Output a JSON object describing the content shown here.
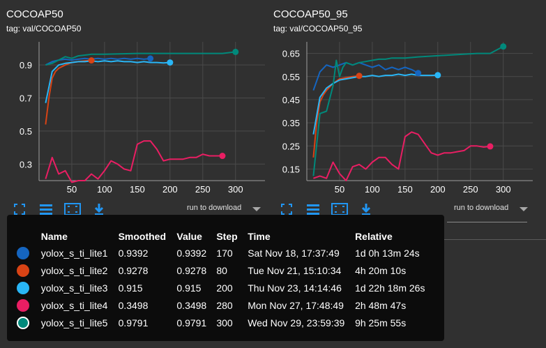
{
  "cards": [
    {
      "title": "COCOAP50",
      "tag": "tag: val/COCOAP50",
      "download_label": "run to download"
    },
    {
      "title": "COCOAP50_95",
      "tag": "tag: val/COCOAP50_95",
      "download_label": "run to download"
    }
  ],
  "toolbar_icons": [
    "fit-domain-icon",
    "toggle-ylog-icon",
    "expand-icon",
    "download-icon"
  ],
  "colors": {
    "background": "#303030",
    "grid": "#4a4a4a",
    "axis": "#9e9e9e",
    "tooltip_bg": "#0c0c0c"
  },
  "chart_data": [
    {
      "type": "line",
      "title": "COCOAP50",
      "subtitle": "tag: val/COCOAP50",
      "xlim": [
        0,
        345
      ],
      "ylim": [
        0.2,
        1.04
      ],
      "x_ticks": [
        "50",
        "100",
        "150",
        "200",
        "250",
        "300"
      ],
      "x_tick_values": [
        50,
        100,
        150,
        200,
        250,
        300
      ],
      "y_ticks": [
        "0.9",
        "0.7",
        "0.5",
        "0.3"
      ],
      "y_tick_values": [
        0.9,
        0.7,
        0.5,
        0.3
      ],
      "grid": true,
      "series": [
        {
          "name": "yolox_s_ti_lite1",
          "color": "#1565c0",
          "x": [
            10,
            20,
            30,
            40,
            50,
            60,
            70,
            80,
            90,
            100,
            110,
            120,
            130,
            140,
            150,
            160,
            170
          ],
          "y": [
            0.9,
            0.92,
            0.93,
            0.935,
            0.93,
            0.935,
            0.94,
            0.935,
            0.94,
            0.935,
            0.94,
            0.935,
            0.94,
            0.935,
            0.94,
            0.935,
            0.9392
          ]
        },
        {
          "name": "yolox_s_ti_lite2",
          "color": "#d84315",
          "x": [
            10,
            15,
            20,
            25,
            30,
            40,
            50,
            60,
            70,
            80
          ],
          "y": [
            0.54,
            0.7,
            0.82,
            0.86,
            0.88,
            0.9,
            0.915,
            0.92,
            0.925,
            0.9278
          ]
        },
        {
          "name": "yolox_s_ti_lite3",
          "color": "#29b6f6",
          "x": [
            10,
            20,
            30,
            40,
            50,
            60,
            70,
            80,
            90,
            100,
            110,
            120,
            130,
            140,
            150,
            160,
            170,
            180,
            190,
            200
          ],
          "y": [
            0.67,
            0.86,
            0.9,
            0.91,
            0.915,
            0.92,
            0.92,
            0.925,
            0.92,
            0.925,
            0.92,
            0.925,
            0.92,
            0.92,
            0.915,
            0.92,
            0.915,
            0.915,
            0.912,
            0.915
          ]
        },
        {
          "name": "yolox_s_ti_lite4",
          "color": "#e91e63",
          "x": [
            10,
            20,
            30,
            40,
            50,
            60,
            70,
            80,
            90,
            100,
            110,
            120,
            130,
            140,
            150,
            160,
            170,
            180,
            190,
            200,
            210,
            220,
            230,
            240,
            250,
            260,
            270,
            280
          ],
          "y": [
            0.21,
            0.34,
            0.24,
            0.26,
            0.19,
            0.2,
            0.2,
            0.24,
            0.21,
            0.26,
            0.32,
            0.3,
            0.27,
            0.26,
            0.42,
            0.44,
            0.44,
            0.39,
            0.32,
            0.33,
            0.33,
            0.33,
            0.34,
            0.34,
            0.36,
            0.35,
            0.35,
            0.3498
          ]
        },
        {
          "name": "yolox_s_ti_lite5",
          "color": "#00897b",
          "x": [
            10,
            20,
            30,
            40,
            50,
            60,
            70,
            80,
            100,
            150,
            200,
            250,
            280,
            300
          ],
          "y": [
            0.9,
            0.91,
            0.93,
            0.95,
            0.94,
            0.955,
            0.96,
            0.965,
            0.965,
            0.97,
            0.97,
            0.97,
            0.97,
            0.9791
          ]
        }
      ]
    },
    {
      "type": "line",
      "title": "COCOAP50_95",
      "subtitle": "tag: val/COCOAP50_95",
      "xlim": [
        0,
        345
      ],
      "ylim": [
        0.1,
        0.7
      ],
      "x_ticks": [
        "50",
        "100",
        "150",
        "200",
        "250",
        "300"
      ],
      "x_tick_values": [
        50,
        100,
        150,
        200,
        250,
        300
      ],
      "y_ticks": [
        "0.65",
        "0.55",
        "0.45",
        "0.35",
        "0.25",
        "0.15"
      ],
      "y_tick_values": [
        0.65,
        0.55,
        0.45,
        0.35,
        0.25,
        0.15
      ],
      "grid": true,
      "series": [
        {
          "name": "yolox_s_ti_lite1",
          "color": "#1565c0",
          "x": [
            10,
            20,
            30,
            40,
            50,
            60,
            70,
            80,
            90,
            100,
            110,
            120,
            130,
            140,
            150,
            160,
            170
          ],
          "y": [
            0.49,
            0.57,
            0.6,
            0.59,
            0.6,
            0.61,
            0.6,
            0.61,
            0.6,
            0.59,
            0.6,
            0.58,
            0.59,
            0.58,
            0.59,
            0.58,
            0.565
          ]
        },
        {
          "name": "yolox_s_ti_lite2",
          "color": "#d84315",
          "x": [
            10,
            15,
            20,
            25,
            30,
            40,
            50,
            60,
            70,
            80
          ],
          "y": [
            0.2,
            0.35,
            0.44,
            0.47,
            0.49,
            0.52,
            0.54,
            0.545,
            0.55,
            0.553
          ]
        },
        {
          "name": "yolox_s_ti_lite3",
          "color": "#29b6f6",
          "x": [
            10,
            20,
            30,
            40,
            50,
            60,
            70,
            80,
            90,
            100,
            110,
            120,
            130,
            140,
            150,
            160,
            170,
            180,
            190,
            200
          ],
          "y": [
            0.3,
            0.46,
            0.5,
            0.52,
            0.535,
            0.54,
            0.545,
            0.55,
            0.55,
            0.555,
            0.55,
            0.555,
            0.555,
            0.56,
            0.555,
            0.56,
            0.555,
            0.555,
            0.555,
            0.556
          ]
        },
        {
          "name": "yolox_s_ti_lite4",
          "color": "#e91e63",
          "x": [
            10,
            20,
            30,
            40,
            50,
            60,
            70,
            80,
            90,
            100,
            110,
            120,
            130,
            140,
            150,
            160,
            170,
            180,
            190,
            200,
            210,
            220,
            230,
            240,
            250,
            260,
            270,
            280
          ],
          "y": [
            0.11,
            0.12,
            0.11,
            0.18,
            0.13,
            0.1,
            0.16,
            0.17,
            0.15,
            0.18,
            0.2,
            0.2,
            0.17,
            0.15,
            0.29,
            0.31,
            0.3,
            0.26,
            0.22,
            0.21,
            0.22,
            0.22,
            0.225,
            0.23,
            0.25,
            0.25,
            0.245,
            0.248
          ]
        },
        {
          "name": "yolox_s_ti_lite5",
          "color": "#00897b",
          "x": [
            10,
            20,
            30,
            40,
            45,
            50,
            55,
            60,
            70,
            80,
            90,
            100,
            110,
            120,
            130,
            150,
            170,
            200,
            230,
            260,
            280,
            290,
            300
          ],
          "y": [
            0.12,
            0.39,
            0.4,
            0.51,
            0.62,
            0.55,
            0.59,
            0.61,
            0.6,
            0.61,
            0.615,
            0.62,
            0.625,
            0.625,
            0.63,
            0.63,
            0.635,
            0.64,
            0.645,
            0.65,
            0.65,
            0.665,
            0.68
          ]
        }
      ]
    }
  ],
  "tooltip": {
    "headers": {
      "name": "Name",
      "smoothed": "Smoothed",
      "value": "Value",
      "step": "Step",
      "time": "Time",
      "relative": "Relative"
    },
    "rows": [
      {
        "color": "#1565c0",
        "name": "yolox_s_ti_lite1",
        "smoothed": "0.9392",
        "value": "0.9392",
        "step": "170",
        "time": "Sat Nov 18, 17:37:49",
        "relative": "1d 0h 13m 24s"
      },
      {
        "color": "#d84315",
        "name": "yolox_s_ti_lite2",
        "smoothed": "0.9278",
        "value": "0.9278",
        "step": "80",
        "time": "Tue Nov 21, 15:10:34",
        "relative": "4h 20m 10s"
      },
      {
        "color": "#29b6f6",
        "name": "yolox_s_ti_lite3",
        "smoothed": "0.915",
        "value": "0.915",
        "step": "200",
        "time": "Thu Nov 23, 14:14:46",
        "relative": "1d 22h 18m 26s"
      },
      {
        "color": "#e91e63",
        "name": "yolox_s_ti_lite4",
        "smoothed": "0.3498",
        "value": "0.3498",
        "step": "280",
        "time": "Mon Nov 27, 17:48:49",
        "relative": "2h 48m 47s"
      },
      {
        "color": "#00897b",
        "name": "yolox_s_ti_lite5",
        "smoothed": "0.9791",
        "value": "0.9791",
        "step": "300",
        "time": "Wed Nov 29, 23:59:39",
        "relative": "9h 25m 55s",
        "highlighted": true
      }
    ]
  }
}
